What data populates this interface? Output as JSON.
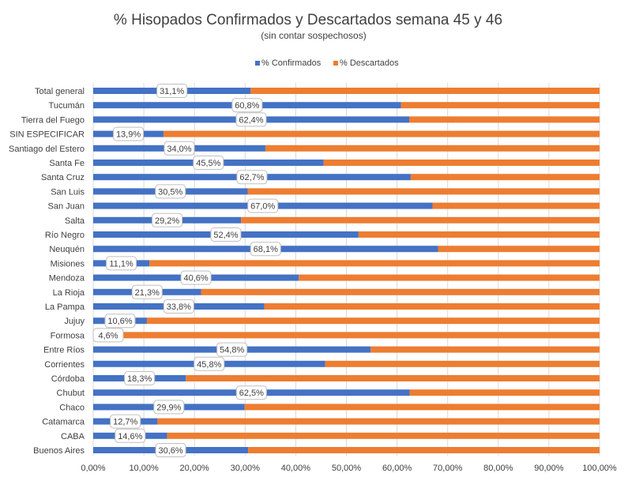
{
  "chart_data": {
    "type": "bar",
    "orientation": "horizontal",
    "stacked": "percent",
    "title": "% Hisopados Confirmados y Descartados semana 45 y 46",
    "subtitle": "(sin contar sospechosos)",
    "legend_position": "top",
    "grid": true,
    "xlim": [
      0,
      100
    ],
    "x_ticks": [
      "0,00%",
      "10,00%",
      "20,00%",
      "30,00%",
      "40,00%",
      "50,00%",
      "60,00%",
      "70,00%",
      "80,00%",
      "90,00%",
      "100,00%"
    ],
    "categories": [
      "Total general",
      "Tucumán",
      "Tierra del Fuego",
      "SIN ESPECIFICAR",
      "Santiago del Estero",
      "Santa Fe",
      "Santa Cruz",
      "San Luis",
      "San Juan",
      "Salta",
      "Río Negro",
      "Neuquén",
      "Misiones",
      "Mendoza",
      "La Rioja",
      "La Pampa",
      "Jujuy",
      "Formosa",
      "Entre Ríos",
      "Corrientes",
      "Córdoba",
      "Chubut",
      "Chaco",
      "Catamarca",
      "CABA",
      "Buenos Aires"
    ],
    "series": [
      {
        "name": "% Confirmados",
        "color": "#4472C4",
        "values": [
          31.1,
          60.8,
          62.4,
          13.9,
          34.0,
          45.5,
          62.7,
          30.5,
          67.0,
          29.2,
          52.4,
          68.1,
          11.1,
          40.6,
          21.3,
          33.8,
          10.6,
          4.6,
          54.8,
          45.8,
          18.3,
          62.5,
          29.9,
          12.7,
          14.6,
          30.6
        ],
        "labels": [
          "31,1%",
          "60,8%",
          "62,4%",
          "13,9%",
          "34,0%",
          "45,5%",
          "62,7%",
          "30,5%",
          "67,0%",
          "29,2%",
          "52,4%",
          "68,1%",
          "11,1%",
          "40,6%",
          "21,3%",
          "33,8%",
          "10,6%",
          "4,6%",
          "54,8%",
          "45,8%",
          "18,3%",
          "62,5%",
          "29,9%",
          "12,7%",
          "14,6%",
          "30,6%"
        ]
      },
      {
        "name": "% Descartados",
        "color": "#ED7D31",
        "values": [
          68.9,
          39.2,
          37.6,
          86.1,
          66.0,
          54.5,
          37.3,
          69.5,
          33.0,
          70.8,
          47.6,
          31.9,
          88.9,
          59.4,
          78.7,
          66.2,
          89.4,
          95.4,
          45.2,
          54.2,
          81.7,
          37.5,
          70.1,
          87.3,
          85.4,
          69.4
        ]
      }
    ]
  }
}
